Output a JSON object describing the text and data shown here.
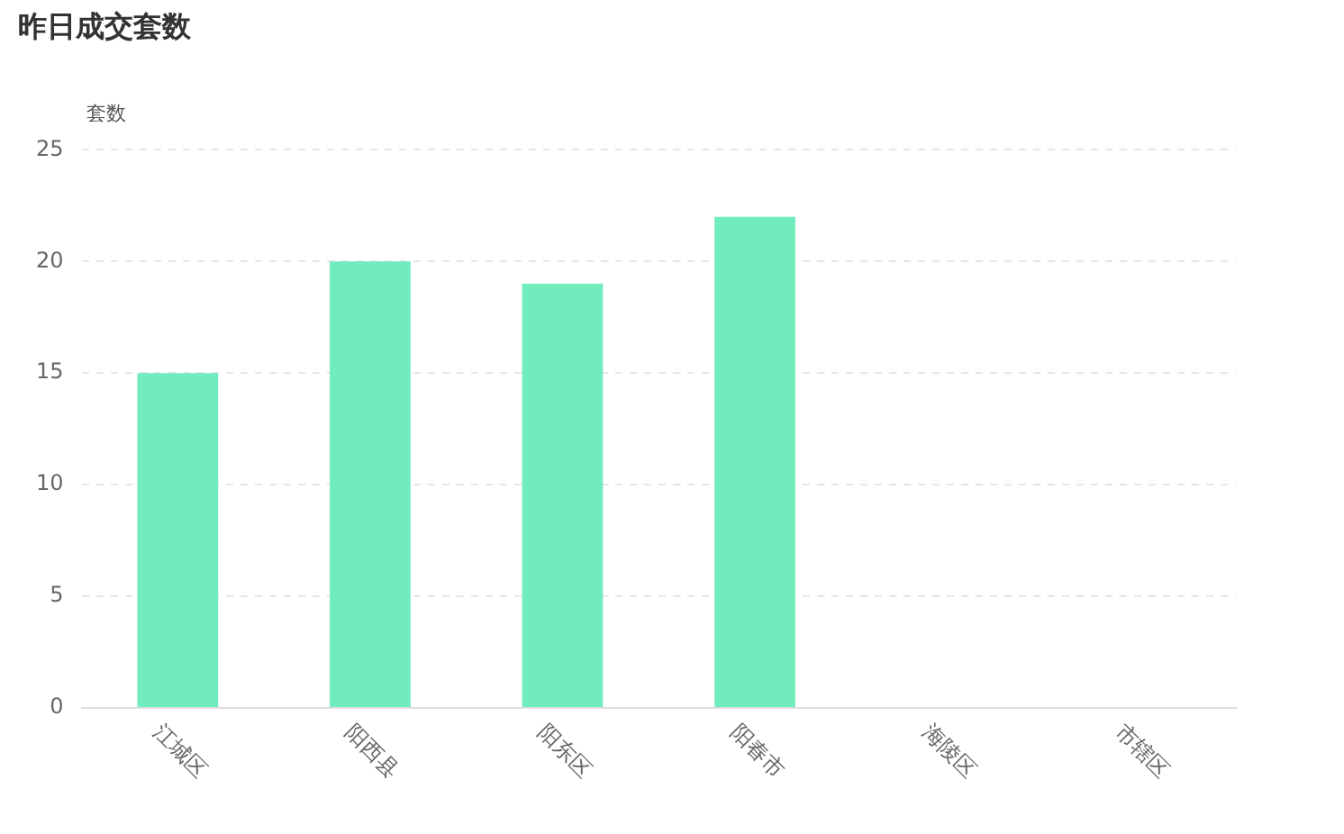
{
  "chart_data": {
    "type": "bar",
    "title": "昨日成交套数",
    "ylabel": "套数",
    "categories": [
      "江城区",
      "阳西县",
      "阳东区",
      "阳春市",
      "海陵区",
      "市辖区"
    ],
    "values": [
      15,
      20,
      19,
      22,
      0,
      0
    ],
    "color": "#71ecbc",
    "ylim": [
      0,
      25
    ],
    "yticks": [
      0,
      5,
      10,
      15,
      20,
      25
    ],
    "grid": "y"
  }
}
